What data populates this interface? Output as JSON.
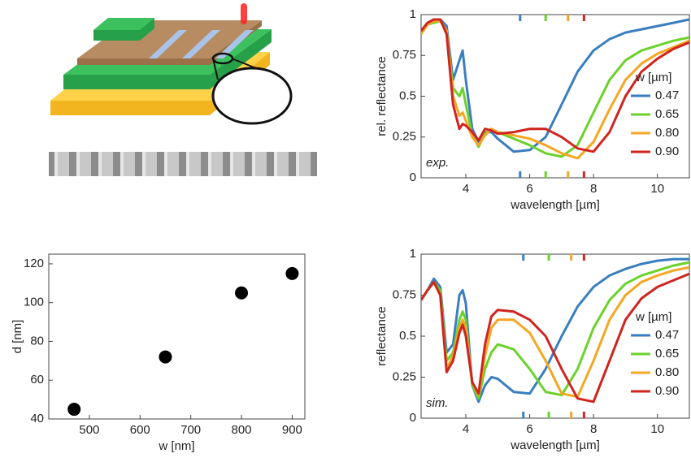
{
  "chart_data": [
    {
      "type": "line",
      "annotation": "exp.",
      "ylabel": "rel. reflectance",
      "xlabel": "wavelength [µm]",
      "legend_title": "w [µm]",
      "xlim": [
        2.6,
        11
      ],
      "ylim": [
        0,
        1
      ],
      "xticks": [
        4,
        6,
        8,
        10
      ],
      "yticks": [
        0,
        0.25,
        0.5,
        0.75,
        1
      ],
      "x": [
        2.6,
        2.8,
        3.0,
        3.2,
        3.4,
        3.6,
        3.8,
        3.9,
        4.0,
        4.2,
        4.4,
        4.6,
        4.8,
        5.0,
        5.5,
        6.0,
        6.5,
        7.0,
        7.5,
        8.0,
        8.5,
        9.0,
        9.5,
        10.0,
        10.5,
        11.0
      ],
      "series": [
        {
          "name": "0.47",
          "color": "#3a7ebf",
          "resonance": 5.7,
          "values": [
            0.9,
            0.95,
            0.97,
            0.97,
            0.93,
            0.6,
            0.72,
            0.78,
            0.6,
            0.3,
            0.22,
            0.28,
            0.28,
            0.24,
            0.16,
            0.17,
            0.25,
            0.45,
            0.65,
            0.78,
            0.85,
            0.89,
            0.91,
            0.93,
            0.95,
            0.97
          ]
        },
        {
          "name": "0.65",
          "color": "#6bd22b",
          "resonance": 6.5,
          "values": [
            0.88,
            0.94,
            0.95,
            0.96,
            0.9,
            0.55,
            0.5,
            0.55,
            0.45,
            0.26,
            0.19,
            0.27,
            0.3,
            0.28,
            0.24,
            0.2,
            0.15,
            0.13,
            0.2,
            0.4,
            0.6,
            0.72,
            0.78,
            0.81,
            0.84,
            0.86
          ]
        },
        {
          "name": "0.80",
          "color": "#f5a623",
          "resonance": 7.2,
          "values": [
            0.88,
            0.94,
            0.96,
            0.96,
            0.9,
            0.5,
            0.38,
            0.4,
            0.35,
            0.25,
            0.2,
            0.26,
            0.3,
            0.28,
            0.26,
            0.24,
            0.2,
            0.15,
            0.12,
            0.22,
            0.42,
            0.6,
            0.7,
            0.76,
            0.8,
            0.84
          ]
        },
        {
          "name": "0.90",
          "color": "#d0241f",
          "resonance": 7.7,
          "values": [
            0.9,
            0.95,
            0.97,
            0.97,
            0.88,
            0.45,
            0.3,
            0.33,
            0.32,
            0.28,
            0.23,
            0.3,
            0.29,
            0.27,
            0.28,
            0.3,
            0.3,
            0.25,
            0.18,
            0.16,
            0.28,
            0.5,
            0.65,
            0.73,
            0.79,
            0.83
          ]
        }
      ]
    },
    {
      "type": "line",
      "annotation": "sim.",
      "ylabel": "reflectance",
      "xlabel": "wavelength [µm]",
      "legend_title": "w [µm]",
      "xlim": [
        2.6,
        11
      ],
      "ylim": [
        0,
        1
      ],
      "xticks": [
        4,
        6,
        8,
        10
      ],
      "yticks": [
        0,
        0.25,
        0.5,
        0.75,
        1
      ],
      "x": [
        2.6,
        2.8,
        3.0,
        3.2,
        3.4,
        3.6,
        3.8,
        3.9,
        4.0,
        4.2,
        4.4,
        4.6,
        4.8,
        5.0,
        5.5,
        6.0,
        6.5,
        7.0,
        7.5,
        8.0,
        8.5,
        9.0,
        9.5,
        10.0,
        10.5,
        11.0
      ],
      "series": [
        {
          "name": "0.47",
          "color": "#3a7ebf",
          "resonance": 5.8,
          "values": [
            0.72,
            0.78,
            0.85,
            0.8,
            0.4,
            0.45,
            0.75,
            0.78,
            0.7,
            0.2,
            0.1,
            0.2,
            0.25,
            0.24,
            0.16,
            0.15,
            0.3,
            0.5,
            0.68,
            0.8,
            0.87,
            0.91,
            0.94,
            0.96,
            0.97,
            0.97
          ]
        },
        {
          "name": "0.65",
          "color": "#6bd22b",
          "resonance": 6.6,
          "values": [
            0.72,
            0.78,
            0.83,
            0.78,
            0.35,
            0.4,
            0.6,
            0.65,
            0.6,
            0.2,
            0.12,
            0.3,
            0.4,
            0.45,
            0.42,
            0.3,
            0.16,
            0.14,
            0.3,
            0.55,
            0.72,
            0.82,
            0.87,
            0.9,
            0.93,
            0.95
          ]
        },
        {
          "name": "0.80",
          "color": "#f5a623",
          "resonance": 7.3,
          "values": [
            0.72,
            0.78,
            0.83,
            0.75,
            0.3,
            0.38,
            0.55,
            0.6,
            0.55,
            0.22,
            0.14,
            0.38,
            0.55,
            0.6,
            0.6,
            0.52,
            0.35,
            0.15,
            0.13,
            0.35,
            0.6,
            0.75,
            0.83,
            0.87,
            0.9,
            0.92
          ]
        },
        {
          "name": "0.90",
          "color": "#d0241f",
          "resonance": 7.7,
          "values": [
            0.72,
            0.78,
            0.83,
            0.75,
            0.28,
            0.35,
            0.52,
            0.57,
            0.5,
            0.22,
            0.15,
            0.45,
            0.62,
            0.66,
            0.65,
            0.6,
            0.5,
            0.3,
            0.12,
            0.1,
            0.35,
            0.6,
            0.73,
            0.8,
            0.84,
            0.88
          ]
        }
      ]
    },
    {
      "type": "scatter",
      "xlabel": "w [nm]",
      "ylabel": "d [nm]",
      "color": "#000000",
      "xlim": [
        420,
        925
      ],
      "ylim": [
        40,
        125
      ],
      "xticks": [
        500,
        600,
        700,
        800,
        900
      ],
      "yticks": [
        40,
        60,
        80,
        100,
        120
      ],
      "x": [
        470,
        650,
        800,
        900
      ],
      "values": [
        45,
        72,
        105,
        115
      ]
    }
  ]
}
